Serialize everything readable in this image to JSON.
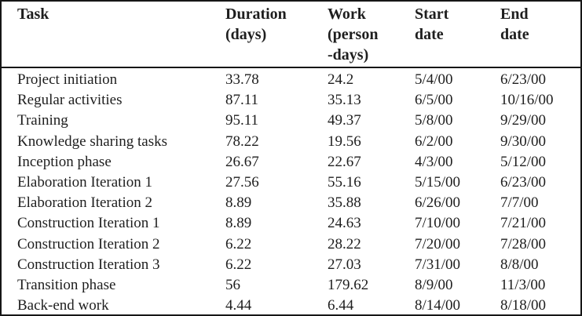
{
  "table": {
    "columns": [
      {
        "key": "task",
        "label": "Task"
      },
      {
        "key": "duration_days",
        "label": "Duration\n(days)"
      },
      {
        "key": "work_person_days",
        "label": "Work\n(person\n-days)"
      },
      {
        "key": "start_date",
        "label": "Start\ndate"
      },
      {
        "key": "end_date",
        "label": "End\ndate"
      }
    ],
    "rows": [
      {
        "task": "Project initiation",
        "duration_days": "33.78",
        "work_person_days": "24.2",
        "start_date": "5/4/00",
        "end_date": "6/23/00"
      },
      {
        "task": "Regular activities",
        "duration_days": "87.11",
        "work_person_days": "35.13",
        "start_date": "6/5/00",
        "end_date": "10/16/00"
      },
      {
        "task": "Training",
        "duration_days": "95.11",
        "work_person_days": "49.37",
        "start_date": "5/8/00",
        "end_date": "9/29/00"
      },
      {
        "task": "Knowledge sharing tasks",
        "duration_days": "78.22",
        "work_person_days": "19.56",
        "start_date": "6/2/00",
        "end_date": "9/30/00"
      },
      {
        "task": "Inception phase",
        "duration_days": "26.67",
        "work_person_days": "22.67",
        "start_date": "4/3/00",
        "end_date": "5/12/00"
      },
      {
        "task": "Elaboration Iteration 1",
        "duration_days": "27.56",
        "work_person_days": "55.16",
        "start_date": "5/15/00",
        "end_date": "6/23/00"
      },
      {
        "task": "Elaboration Iteration 2",
        "duration_days": "8.89",
        "work_person_days": "35.88",
        "start_date": "6/26/00",
        "end_date": "7/7/00"
      },
      {
        "task": "Construction Iteration 1",
        "duration_days": "8.89",
        "work_person_days": "24.63",
        "start_date": "7/10/00",
        "end_date": "7/21/00"
      },
      {
        "task": "Construction Iteration 2",
        "duration_days": "6.22",
        "work_person_days": "28.22",
        "start_date": "7/20/00",
        "end_date": "7/28/00"
      },
      {
        "task": "Construction Iteration 3",
        "duration_days": "6.22",
        "work_person_days": "27.03",
        "start_date": "7/31/00",
        "end_date": "8/8/00"
      },
      {
        "task": "Transition phase",
        "duration_days": "56",
        "work_person_days": "179.62",
        "start_date": "8/9/00",
        "end_date": "11/3/00"
      },
      {
        "task": "Back-end work",
        "duration_days": "4.44",
        "work_person_days": "6.44",
        "start_date": "8/14/00",
        "end_date": "8/18/00"
      }
    ]
  }
}
